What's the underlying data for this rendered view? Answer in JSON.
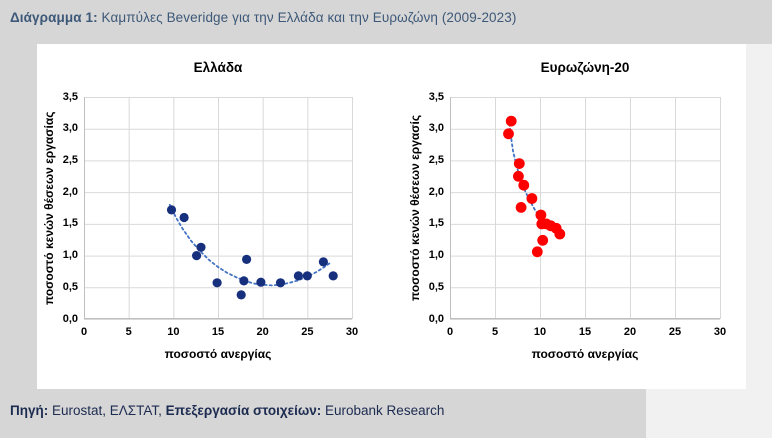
{
  "title": {
    "prefix": "Διάγραμμα 1:",
    "text": " Καμπύλες Beveridge για την Ελλάδα και την Ευρωζώνη (2009-2023)"
  },
  "footer": {
    "source_label": "Πηγή:",
    "source_text": " Eurostat, ΕΛΣΤΑΤ, ",
    "processing_label": "Επεξεργασία στοιχείων:",
    "processing_text": " Eurobank Research"
  },
  "chart_data": [
    {
      "type": "scatter",
      "title": "Ελλάδα",
      "xlabel": "ποσοστό ανεργίας",
      "ylabel": "ποσοστό κενών θέσεων εργασίας",
      "xlim": [
        0,
        30
      ],
      "ylim": [
        0,
        3.5
      ],
      "xticks": [
        "0",
        "5",
        "10",
        "15",
        "20",
        "25",
        "30"
      ],
      "yticks": [
        "0,0",
        "0,5",
        "1,0",
        "1,5",
        "2,0",
        "2,5",
        "3,0",
        "3,5"
      ],
      "grid": true,
      "grid_color": "#d9d9d9",
      "axis_color": "#bfbfbf",
      "point_color": "#16307e",
      "point_radius": 4.6,
      "trend_color": "#4472c4",
      "points": [
        [
          9.8,
          1.72
        ],
        [
          11.2,
          1.6
        ],
        [
          12.6,
          1.0
        ],
        [
          13.1,
          1.13
        ],
        [
          14.9,
          0.57
        ],
        [
          17.6,
          0.38
        ],
        [
          17.9,
          0.6
        ],
        [
          18.2,
          0.94
        ],
        [
          19.8,
          0.58
        ],
        [
          22.0,
          0.57
        ],
        [
          24.0,
          0.68
        ],
        [
          25.0,
          0.68
        ],
        [
          26.8,
          0.9
        ],
        [
          27.9,
          0.68
        ]
      ],
      "trend": [
        [
          9.6,
          1.8
        ],
        [
          10.3,
          1.6
        ],
        [
          11.0,
          1.43
        ],
        [
          12.0,
          1.23
        ],
        [
          13.0,
          1.07
        ],
        [
          14.0,
          0.93
        ],
        [
          15.0,
          0.82
        ],
        [
          16.0,
          0.73
        ],
        [
          17.0,
          0.66
        ],
        [
          18.0,
          0.6
        ],
        [
          19.0,
          0.56
        ],
        [
          20.0,
          0.54
        ],
        [
          21.0,
          0.53
        ],
        [
          22.0,
          0.54
        ],
        [
          23.0,
          0.57
        ],
        [
          24.0,
          0.61
        ],
        [
          25.0,
          0.67
        ],
        [
          26.0,
          0.74
        ],
        [
          26.8,
          0.81
        ],
        [
          27.5,
          0.88
        ]
      ]
    },
    {
      "type": "scatter",
      "title": "Ευρωζώνη-20",
      "xlabel": "ποσοστό ανεργίας",
      "ylabel": "ποσοστό κενών θέσεων εργασίς",
      "xlim": [
        0,
        30
      ],
      "ylim": [
        0,
        3.5
      ],
      "xticks": [
        "0",
        "5",
        "10",
        "15",
        "20",
        "25",
        "30"
      ],
      "yticks": [
        "0,0",
        "0,5",
        "1,0",
        "1,5",
        "2,0",
        "2,5",
        "3,0",
        "3,5"
      ],
      "grid": true,
      "grid_color": "#d9d9d9",
      "axis_color": "#bfbfbf",
      "point_color": "#ff0000",
      "point_radius": 5.4,
      "trend_color": "#4472c4",
      "points": [
        [
          6.8,
          3.12
        ],
        [
          6.5,
          2.92
        ],
        [
          7.7,
          2.45
        ],
        [
          7.6,
          2.25
        ],
        [
          8.2,
          2.11
        ],
        [
          9.1,
          1.9
        ],
        [
          7.9,
          1.76
        ],
        [
          10.1,
          1.64
        ],
        [
          10.2,
          1.5
        ],
        [
          10.7,
          1.5
        ],
        [
          11.2,
          1.47
        ],
        [
          11.8,
          1.43
        ],
        [
          12.2,
          1.34
        ],
        [
          10.3,
          1.24
        ],
        [
          9.7,
          1.06
        ]
      ],
      "trend": [
        [
          6.6,
          3.08
        ],
        [
          6.8,
          2.85
        ],
        [
          7.0,
          2.65
        ],
        [
          7.3,
          2.47
        ],
        [
          7.6,
          2.31
        ],
        [
          8.0,
          2.15
        ],
        [
          8.4,
          2.0
        ],
        [
          8.9,
          1.86
        ],
        [
          9.4,
          1.73
        ],
        [
          9.9,
          1.62
        ],
        [
          10.4,
          1.54
        ],
        [
          11.0,
          1.47
        ],
        [
          11.6,
          1.42
        ],
        [
          12.1,
          1.38
        ]
      ]
    }
  ]
}
